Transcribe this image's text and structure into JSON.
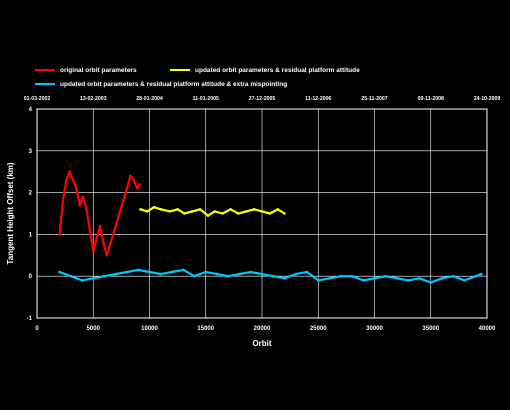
{
  "chart_data": {
    "type": "line",
    "xlabel": "Orbit",
    "ylabel": "Tangent Height Offset (km)",
    "xlim": [
      0,
      40000
    ],
    "ylim": [
      -1,
      4
    ],
    "x_ticks": [
      0,
      5000,
      10000,
      15000,
      20000,
      25000,
      30000,
      35000,
      40000
    ],
    "y_ticks": [
      -1,
      0,
      1,
      2,
      3,
      4
    ],
    "grid": true,
    "legend_position": "top",
    "top_axis_dates": [
      {
        "orbit": 0,
        "label": "01-03-2002"
      },
      {
        "orbit": 5000,
        "label": "13-02-2003"
      },
      {
        "orbit": 10000,
        "label": "28-01-2004"
      },
      {
        "orbit": 15000,
        "label": "11-01-2005"
      },
      {
        "orbit": 20000,
        "label": "27-12-2005"
      },
      {
        "orbit": 25000,
        "label": "11-12-2006"
      },
      {
        "orbit": 30000,
        "label": "25-11-2007"
      },
      {
        "orbit": 35000,
        "label": "09-11-2008"
      },
      {
        "orbit": 40000,
        "label": "24-10-2009"
      }
    ],
    "series": [
      {
        "name": "original orbit parameters",
        "color": "#ff0000",
        "x": [
          2000,
          2300,
          2600,
          2900,
          3200,
          3500,
          3800,
          4100,
          4400,
          4700,
          5000,
          5300,
          5600,
          5900,
          6200,
          8000,
          8300,
          8600,
          8900,
          9100
        ],
        "y": [
          1.0,
          1.8,
          2.3,
          2.5,
          2.3,
          2.1,
          1.7,
          1.9,
          1.6,
          1.1,
          0.6,
          0.9,
          1.2,
          0.8,
          0.5,
          2.1,
          2.4,
          2.3,
          2.1,
          2.2
        ]
      },
      {
        "name": "updated orbit parameters & residual platform attitude",
        "color": "#ffff00",
        "x": [
          9200,
          9800,
          10400,
          11000,
          11800,
          12500,
          13100,
          13800,
          14500,
          15200,
          15800,
          16500,
          17200,
          17900,
          18600,
          19300,
          20000,
          20700,
          21400,
          22000
        ],
        "y": [
          1.6,
          1.55,
          1.65,
          1.6,
          1.55,
          1.6,
          1.5,
          1.55,
          1.6,
          1.45,
          1.55,
          1.5,
          1.6,
          1.5,
          1.55,
          1.6,
          1.55,
          1.5,
          1.6,
          1.5
        ]
      },
      {
        "name": "updated orbit parameters & residual platform attitude & extra mispointing",
        "color": "#00c8ff",
        "x": [
          2000,
          3000,
          4000,
          5000,
          6000,
          7000,
          8000,
          9000,
          10000,
          11000,
          12000,
          13000,
          14000,
          15000,
          16000,
          17000,
          18000,
          19000,
          20000,
          21000,
          22000,
          23000,
          24000,
          25000,
          26000,
          27000,
          28000,
          29000,
          30000,
          31000,
          32000,
          33000,
          34000,
          35000,
          36000,
          37000,
          38000,
          39000,
          39500
        ],
        "y": [
          0.1,
          0.0,
          -0.1,
          -0.05,
          0.0,
          0.05,
          0.1,
          0.15,
          0.1,
          0.05,
          0.1,
          0.15,
          0.0,
          0.1,
          0.05,
          0.0,
          0.05,
          0.1,
          0.05,
          0.0,
          -0.05,
          0.05,
          0.1,
          -0.1,
          -0.05,
          0.0,
          0.0,
          -0.1,
          -0.05,
          0.0,
          -0.05,
          -0.1,
          -0.05,
          -0.15,
          -0.05,
          0.0,
          -0.1,
          0.0,
          0.05
        ]
      }
    ]
  }
}
